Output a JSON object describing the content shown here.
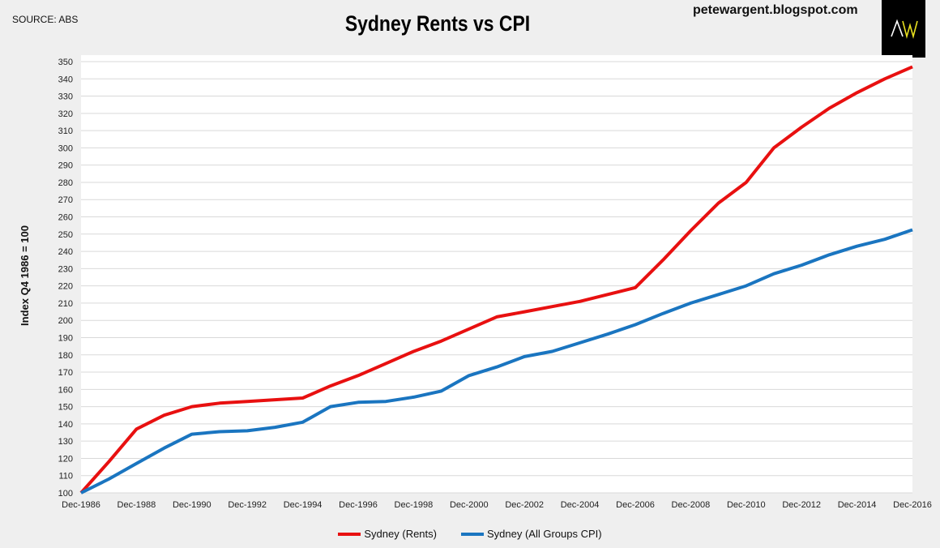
{
  "header": {
    "source": "SOURCE: ABS",
    "site": "petewargent.blogspot.com",
    "logo_text": "AW"
  },
  "chart_data": {
    "type": "line",
    "title": "Sydney Rents vs CPI",
    "xlabel": "",
    "ylabel": "Index Q4 1986 = 100",
    "ylim": [
      100,
      350
    ],
    "yticks": [
      100,
      110,
      120,
      130,
      140,
      150,
      160,
      170,
      180,
      190,
      200,
      210,
      220,
      230,
      240,
      250,
      260,
      270,
      280,
      290,
      300,
      310,
      320,
      330,
      340,
      350
    ],
    "x": [
      "Dec-1986",
      "Dec-1987",
      "Dec-1988",
      "Dec-1989",
      "Dec-1990",
      "Dec-1991",
      "Dec-1992",
      "Dec-1993",
      "Dec-1994",
      "Dec-1995",
      "Dec-1996",
      "Dec-1997",
      "Dec-1998",
      "Dec-1999",
      "Dec-2000",
      "Dec-2001",
      "Dec-2002",
      "Dec-2003",
      "Dec-2004",
      "Dec-2005",
      "Dec-2006",
      "Dec-2007",
      "Dec-2008",
      "Dec-2009",
      "Dec-2010",
      "Dec-2011",
      "Dec-2012",
      "Dec-2013",
      "Dec-2014",
      "Dec-2015",
      "Dec-2016"
    ],
    "xtick_labels": [
      "Dec-1986",
      "Dec-1988",
      "Dec-1990",
      "Dec-1992",
      "Dec-1994",
      "Dec-1996",
      "Dec-1998",
      "Dec-2000",
      "Dec-2002",
      "Dec-2004",
      "Dec-2006",
      "Dec-2008",
      "Dec-2010",
      "Dec-2012",
      "Dec-2014",
      "Dec-2016"
    ],
    "grid": true,
    "legend_position": "bottom",
    "series": [
      {
        "name": "Sydney (Rents)",
        "color": "#e81010",
        "values": [
          100,
          118,
          137,
          145,
          150,
          152,
          153,
          154,
          155,
          162,
          168,
          175,
          182,
          188,
          195,
          202,
          205,
          208,
          211,
          215,
          219,
          235,
          252,
          268,
          280,
          300,
          312,
          323,
          332,
          340,
          347
        ]
      },
      {
        "name": "Sydney (All Groups CPI)",
        "color": "#1a75c0",
        "values": [
          100,
          108,
          117,
          126,
          134,
          135.5,
          136,
          138,
          141,
          150,
          152.5,
          153,
          155.5,
          159,
          168,
          173,
          179,
          182,
          187,
          192,
          197.5,
          204,
          210,
          215,
          220,
          227,
          232,
          238,
          243,
          247,
          252.5
        ]
      }
    ]
  }
}
